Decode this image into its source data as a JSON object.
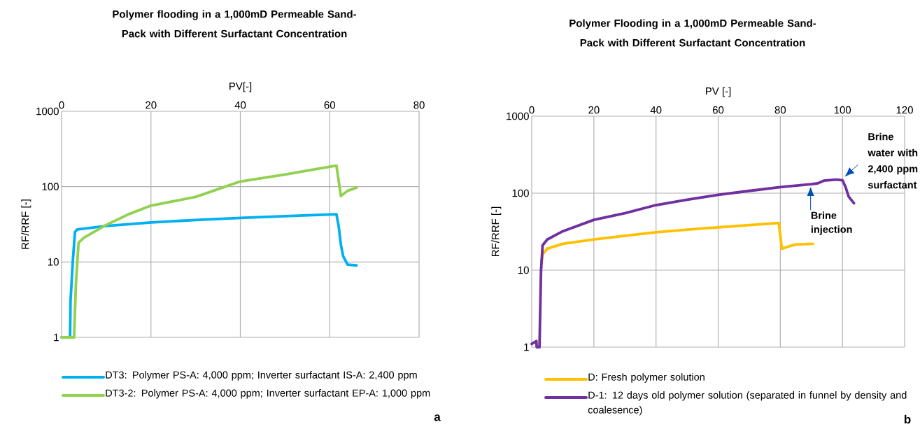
{
  "chart_data": [
    {
      "type": "line",
      "title": "Polymer flooding in a 1,000mD Permeable Sand-Pack with Different Surfactant Concentration",
      "xlabel": "PV[-]",
      "ylabel": "RF/RRF [-]",
      "xlim": [
        0,
        80
      ],
      "xticks": [
        0,
        20,
        40,
        60,
        80
      ],
      "ylim": [
        1,
        1000
      ],
      "yticks": [
        1,
        10,
        100,
        1000
      ],
      "log": true,
      "grid": true,
      "legend": "bottom",
      "series": [
        {
          "name": "DT3: Polymer PS-A: 4,000 ppm; Inverter surfactant IS-A: 2,400 ppm",
          "color": "#00b0f0",
          "x": [
            0,
            1.9,
            2.0,
            2.5,
            3.0,
            3.5,
            10,
            20,
            30,
            40,
            50,
            61.5,
            62,
            62.5,
            63,
            64,
            66
          ],
          "values": [
            1,
            1,
            3,
            10,
            25,
            27,
            30,
            33.5,
            36,
            38.5,
            40.5,
            43,
            30,
            17,
            12,
            9.2,
            9
          ]
        },
        {
          "name": "DT3-2: Polymer PS-A: 4,000 ppm; Inverter surfactant EP-A: 1,000 ppm",
          "color": "#92d050",
          "x": [
            0,
            2.8,
            3.2,
            3.8,
            5,
            10,
            15,
            20,
            30,
            40,
            50,
            56,
            61.5,
            62,
            62.5,
            64,
            66
          ],
          "values": [
            1,
            1,
            5,
            18,
            21,
            31,
            43,
            56,
            73,
            117,
            145,
            167,
            190,
            120,
            75,
            88,
            97
          ]
        }
      ],
      "annotations": [
        "a"
      ]
    },
    {
      "type": "line",
      "title": "Polymer Flooding in a 1,000mD Permeable Sand-Pack with Different Surfactant Concentration",
      "xlabel": "PV [-]",
      "ylabel": "RF/RRF [-]",
      "xlim": [
        0,
        120
      ],
      "xticks": [
        0,
        20,
        40,
        60,
        80,
        100,
        120
      ],
      "ylim": [
        1,
        1000
      ],
      "yticks": [
        1,
        10,
        100,
        1000
      ],
      "log": true,
      "grid": true,
      "legend": "bottom",
      "series": [
        {
          "name": "D: Fresh polymer solution",
          "color": "#ffc000",
          "x": [
            3.2,
            3.5,
            5,
            10,
            20,
            30,
            40,
            50,
            60,
            70,
            79.5,
            80,
            80.5,
            83,
            85,
            90.5
          ],
          "values": [
            13,
            16,
            19,
            22,
            25,
            28,
            31,
            33.5,
            36,
            38.5,
            41,
            28,
            19,
            20.5,
            21.5,
            22
          ]
        },
        {
          "name": "D-1: 12 days old polymer solution (separated in funnel by density and coalesence)",
          "color": "#7030a0",
          "x": [
            0,
            1.5,
            1.6,
            2.5,
            3,
            3.5,
            5,
            10,
            20,
            30,
            40,
            50,
            60,
            70,
            80,
            90,
            92,
            94,
            98,
            100,
            101,
            102,
            103.7
          ],
          "values": [
            1.1,
            1.2,
            1,
            1,
            10,
            21,
            25,
            32,
            45,
            55,
            70,
            82,
            95,
            107,
            120,
            131,
            134,
            145,
            150,
            147,
            120,
            90,
            74
          ]
        }
      ],
      "annotations": [
        {
          "text": "Brine injection",
          "x": 92,
          "y": 134
        },
        {
          "text": "Brine water with 2,400 ppm surfactant",
          "x": 100,
          "y": 147
        },
        "b"
      ]
    }
  ]
}
